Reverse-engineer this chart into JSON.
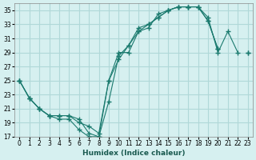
{
  "xlabel": "Humidex (Indice chaleur)",
  "bg_color": "#d6f0f0",
  "grid_color": "#b0d8d8",
  "line_color": "#1a7a6e",
  "xlim": [
    -0.5,
    23.5
  ],
  "ylim": [
    17,
    36
  ],
  "xticks": [
    0,
    1,
    2,
    3,
    4,
    5,
    6,
    7,
    8,
    9,
    10,
    11,
    12,
    13,
    14,
    15,
    16,
    17,
    18,
    19,
    20,
    21,
    22,
    23
  ],
  "yticks": [
    17,
    19,
    21,
    23,
    25,
    27,
    29,
    31,
    33,
    35
  ],
  "series1_x": [
    0,
    1,
    2,
    3,
    4,
    5,
    6,
    7,
    8,
    9,
    10,
    11,
    12,
    13,
    14,
    15,
    16,
    17,
    18,
    19,
    20,
    21,
    22,
    23
  ],
  "series1_y": [
    25,
    22.5,
    21,
    20,
    19.5,
    19.5,
    18,
    17,
    17,
    22,
    28.5,
    30,
    32.5,
    33,
    34,
    35,
    35.5,
    35.5,
    35.5,
    34,
    29,
    32,
    29,
    null
  ],
  "series2_x": [
    0,
    1,
    2,
    3,
    4,
    5,
    6,
    7,
    8,
    9,
    10,
    11,
    12,
    13,
    14,
    15,
    16,
    17,
    18,
    19,
    20,
    21,
    22,
    23
  ],
  "series2_y": [
    25,
    22.5,
    21,
    20,
    20,
    20,
    19,
    18.5,
    17.5,
    25,
    29,
    29,
    32,
    32.5,
    34.5,
    35,
    35.5,
    35.5,
    35.5,
    33.5,
    29.5,
    null,
    null,
    29
  ],
  "series3_x": [
    0,
    1,
    2,
    3,
    4,
    5,
    6,
    7,
    8,
    9,
    10,
    11,
    12,
    13,
    14,
    15,
    16,
    17,
    18,
    19,
    20,
    21,
    22,
    23
  ],
  "series3_y": [
    25,
    22.5,
    21,
    20,
    20,
    20,
    19.5,
    17.5,
    17,
    25,
    28,
    30,
    32,
    33,
    34,
    35,
    35.5,
    35.5,
    35.5,
    33.5,
    29.5,
    null,
    null,
    29
  ]
}
